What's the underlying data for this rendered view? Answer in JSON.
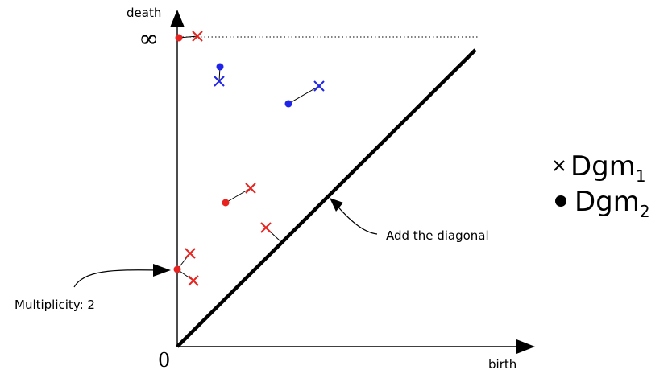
{
  "axes": {
    "y_label": "death",
    "x_label": "birth",
    "origin_label": "0",
    "infinity_label": "∞"
  },
  "annotations": {
    "diagonal": "Add the diagonal",
    "multiplicity": "Multiplicity: 2"
  },
  "legend": {
    "dgm1": {
      "marker": "cross-icon",
      "text": "Dgm",
      "sub": "1"
    },
    "dgm2": {
      "marker": "dot-icon",
      "text": "Dgm",
      "sub": "2"
    }
  },
  "colors": {
    "red": "#e8231f",
    "blue": "#1f24e8",
    "axis": "#000000"
  },
  "points": [
    {
      "id": "inf-red",
      "color": "red"
    },
    {
      "id": "blue-high",
      "color": "blue"
    },
    {
      "id": "blue-mid",
      "color": "blue"
    },
    {
      "id": "red-mid",
      "color": "red"
    },
    {
      "id": "red-diag",
      "color": "red"
    },
    {
      "id": "mult-upper",
      "color": "red"
    },
    {
      "id": "mult-lower",
      "color": "red"
    }
  ]
}
